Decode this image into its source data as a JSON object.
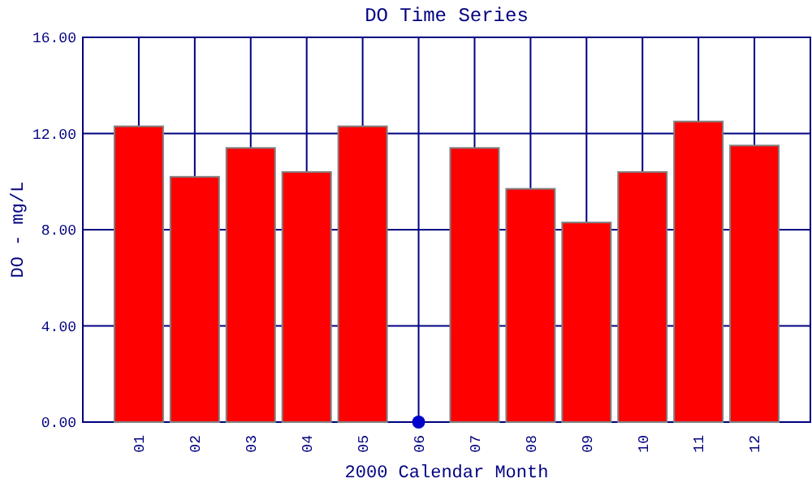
{
  "chart_data": {
    "type": "bar",
    "title": "DO Time Series",
    "xlabel": "2000 Calendar Month",
    "ylabel": "DO - mg/L",
    "categories": [
      "01",
      "02",
      "03",
      "04",
      "05",
      "06",
      "07",
      "08",
      "09",
      "10",
      "11",
      "12"
    ],
    "series": [
      {
        "color": "#ff0000",
        "values": [
          12.3,
          10.2,
          11.4,
          10.4,
          12.3,
          null,
          11.4,
          9.7,
          8.3,
          10.4,
          12.5,
          11.5
        ]
      },
      {
        "type": "scatter",
        "color": "#0000cc",
        "x": [
          "06"
        ],
        "values": [
          0
        ],
        "marker": "circle"
      }
    ],
    "ylim": [
      0,
      16
    ],
    "yticks": [
      {
        "value": 0,
        "label": "0.00"
      },
      {
        "value": 4,
        "label": "4.00"
      },
      {
        "value": 8,
        "label": "8.00"
      },
      {
        "value": 12,
        "label": "12.00"
      },
      {
        "value": 16,
        "label": "16.00"
      }
    ],
    "grid": true
  }
}
